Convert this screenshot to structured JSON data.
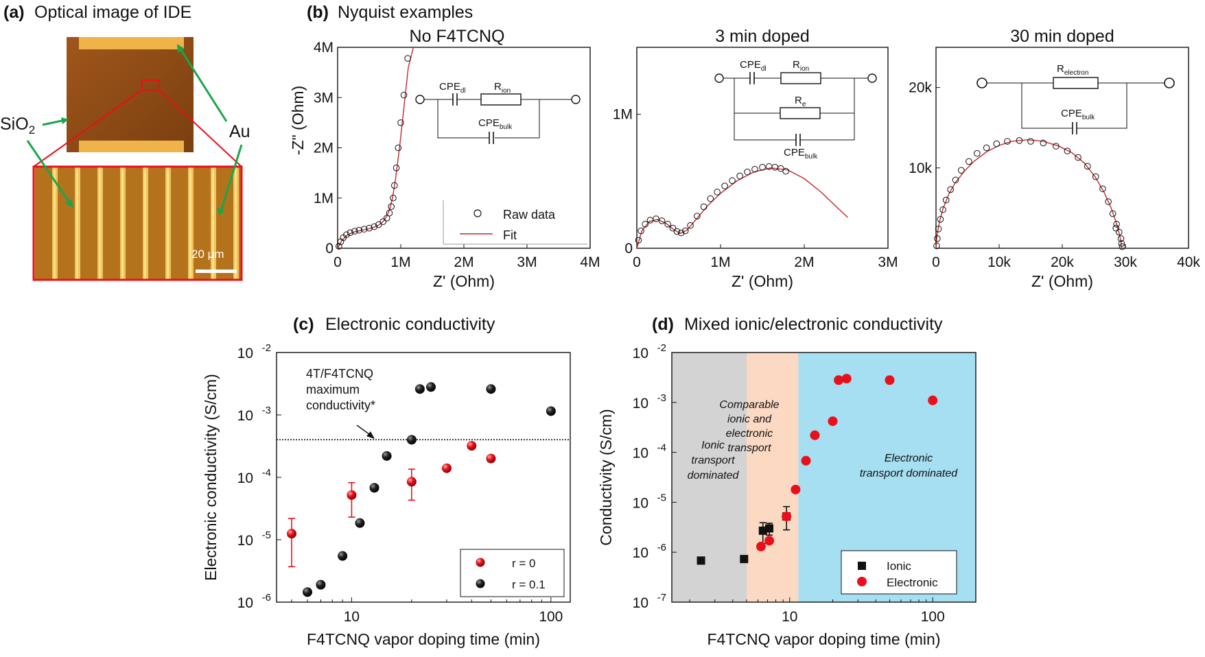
{
  "panels": {
    "a": {
      "tag": "(a)",
      "title": "Optical image of IDE",
      "label_sio2_main": "SiO",
      "label_sio2_sub": "2",
      "label_au": "Au",
      "scale_bar": "20 μm"
    },
    "b": {
      "tag": "(b)",
      "title": "Nyquist examples"
    },
    "c": {
      "tag": "(c)",
      "title": "Electronic conductivity"
    },
    "d": {
      "tag": "(d)",
      "title": "Mixed ionic/electronic conductivity"
    }
  },
  "colors": {
    "red": "#e8101a",
    "black": "#111111",
    "fit": "#c0282a",
    "gray_region": "#d3d3d3",
    "peach_region": "#fbd9c3",
    "blue_region": "#a6def2",
    "gold": "#e3a320",
    "brown": "#8a4d15"
  },
  "chart_data": [
    {
      "id": "b1",
      "type": "scatter",
      "title": "No F4TCNQ",
      "xlabel": "Z' (Ohm)",
      "ylabel": "-Z\" (Ohm)",
      "xlim": [
        0,
        4000000
      ],
      "ylim": [
        0,
        4000000
      ],
      "xticks": [
        {
          "v": 0,
          "t": "0"
        },
        {
          "v": 1000000,
          "t": "1M"
        },
        {
          "v": 2000000,
          "t": "2M"
        },
        {
          "v": 3000000,
          "t": "3M"
        },
        {
          "v": 4000000,
          "t": "4M"
        }
      ],
      "yticks": [
        {
          "v": 0,
          "t": "0"
        },
        {
          "v": 1000000,
          "t": "1M"
        },
        {
          "v": 2000000,
          "t": "2M"
        },
        {
          "v": 3000000,
          "t": "3M"
        },
        {
          "v": 4000000,
          "t": "4M"
        }
      ],
      "legend": [
        "Raw data",
        "Fit"
      ],
      "circuit": {
        "cpe_dl": "CPE",
        "cpe_dl_sub": "dl",
        "r_ion": "R",
        "r_ion_sub": "ion",
        "cpe_bulk": "CPE",
        "cpe_bulk_sub": "bulk"
      },
      "raw_x": [
        20000,
        50000,
        90000,
        140000,
        200000,
        270000,
        340000,
        420000,
        500000,
        580000,
        650000,
        720000,
        780000,
        820000,
        850000,
        880000,
        900000,
        930000,
        960000,
        1000000,
        1050000,
        1110000
      ],
      "raw_y": [
        40000,
        130000,
        210000,
        270000,
        310000,
        340000,
        360000,
        380000,
        400000,
        430000,
        470000,
        530000,
        600000,
        700000,
        830000,
        1000000,
        1250000,
        1600000,
        2000000,
        2500000,
        3050000,
        3780000
      ],
      "fit_x": [
        0,
        60000,
        150000,
        250000,
        350000,
        450000,
        550000,
        650000,
        720000,
        780000,
        830000,
        870000,
        920000,
        980000,
        1050000,
        1120000,
        1200000
      ],
      "fit_y": [
        0,
        140000,
        260000,
        320000,
        350000,
        375000,
        405000,
        460000,
        530000,
        640000,
        800000,
        1000000,
        1400000,
        2000000,
        2800000,
        3600000,
        4000000
      ]
    },
    {
      "id": "b2",
      "type": "scatter",
      "title": "3 min doped",
      "xlabel": "Z' (Ohm)",
      "ylabel": "",
      "xlim": [
        0,
        3000000
      ],
      "ylim": [
        0,
        1500000
      ],
      "xticks": [
        {
          "v": 0,
          "t": "0"
        },
        {
          "v": 1000000,
          "t": "1M"
        },
        {
          "v": 2000000,
          "t": "2M"
        },
        {
          "v": 3000000,
          "t": "3M"
        }
      ],
      "yticks": [
        {
          "v": 0,
          "t": "0"
        },
        {
          "v": 1000000,
          "t": "1M"
        }
      ],
      "circuit": {
        "cpe_dl": "CPE",
        "cpe_dl_sub": "dl",
        "r_ion": "R",
        "r_ion_sub": "ion",
        "r_e": "R",
        "r_e_sub": "e",
        "cpe_bulk": "CPE",
        "cpe_bulk_sub": "bulk"
      },
      "raw_x": [
        20000,
        50000,
        100000,
        160000,
        230000,
        300000,
        370000,
        430000,
        480000,
        530000,
        580000,
        640000,
        720000,
        800000,
        880000,
        960000,
        1050000,
        1140000,
        1230000,
        1320000,
        1410000,
        1500000,
        1580000,
        1650000,
        1720000,
        1780000
      ],
      "raw_y": [
        60000,
        130000,
        180000,
        210000,
        220000,
        205000,
        180000,
        150000,
        125000,
        115000,
        130000,
        170000,
        240000,
        310000,
        370000,
        420000,
        465000,
        505000,
        540000,
        570000,
        590000,
        605000,
        610000,
        605000,
        595000,
        575000
      ],
      "fit_x": [
        0,
        60000,
        150000,
        250000,
        350000,
        450000,
        520000,
        600000,
        700000,
        850000,
        1000000,
        1200000,
        1400000,
        1600000,
        1800000,
        2000000,
        2200000,
        2400000,
        2520000
      ],
      "fit_y": [
        0,
        130000,
        200000,
        215000,
        185000,
        135000,
        110000,
        135000,
        210000,
        320000,
        410000,
        505000,
        570000,
        600000,
        585000,
        520000,
        420000,
        300000,
        230000
      ]
    },
    {
      "id": "b3",
      "type": "scatter",
      "title": "30 min doped",
      "xlabel": "Z' (Ohm)",
      "ylabel": "",
      "xlim": [
        0,
        40000
      ],
      "ylim": [
        0,
        25000
      ],
      "xticks": [
        {
          "v": 0,
          "t": "0"
        },
        {
          "v": 10000,
          "t": "10k"
        },
        {
          "v": 20000,
          "t": "20k"
        },
        {
          "v": 30000,
          "t": "30k"
        },
        {
          "v": 40000,
          "t": "40k"
        }
      ],
      "yticks": [
        {
          "v": 10000,
          "t": "10k"
        },
        {
          "v": 20000,
          "t": "20k"
        }
      ],
      "circuit": {
        "r_electron": "R",
        "r_electron_sub": "electron",
        "cpe_bulk": "CPE",
        "cpe_bulk_sub": "bulk"
      },
      "raw_x": [
        100,
        200,
        400,
        700,
        1100,
        1600,
        2300,
        3100,
        4000,
        5200,
        6500,
        8000,
        9600,
        11300,
        13200,
        15000,
        17000,
        19000,
        20800,
        22500,
        24000,
        25300,
        26400,
        27300,
        28000,
        28600,
        29000,
        29300,
        29400,
        29500,
        28500
      ],
      "raw_y": [
        300,
        1200,
        2400,
        3600,
        4800,
        6000,
        7300,
        8500,
        9700,
        10800,
        11800,
        12500,
        13000,
        13300,
        13400,
        13300,
        13100,
        12700,
        12100,
        11300,
        10200,
        8900,
        7400,
        5800,
        4300,
        3000,
        2000,
        1200,
        600,
        200,
        2500
      ],
      "fit_x": [
        0,
        150,
        500,
        1100,
        2000,
        3000,
        4500,
        6000,
        8000,
        10000,
        12000,
        14500,
        17000,
        19500,
        21500,
        23500,
        25200,
        26600,
        27700,
        28500,
        29000,
        29300,
        29400
      ],
      "fit_y": [
        0,
        1500,
        3100,
        4900,
        6700,
        8100,
        9600,
        10800,
        12000,
        12800,
        13300,
        13500,
        13300,
        12700,
        11900,
        10600,
        8900,
        7000,
        5100,
        3300,
        1900,
        800,
        0
      ]
    },
    {
      "id": "c",
      "type": "scatter",
      "title": "Electronic conductivity",
      "xlabel": "F4TCNQ vapor doping time (min)",
      "ylabel": "Electronic conductivity (S/cm)",
      "xscale": "log",
      "yscale": "log",
      "xlim": [
        4.2,
        125
      ],
      "ylim": [
        1e-06,
        0.01
      ],
      "xticks": [
        {
          "v": 10,
          "t": "10"
        },
        {
          "v": 100,
          "t": "100"
        }
      ],
      "yticks": [
        {
          "v": 1e-06,
          "t": "10",
          "e": "-6"
        },
        {
          "v": 1e-05,
          "t": "10",
          "e": "-5"
        },
        {
          "v": 0.0001,
          "t": "10",
          "e": "-4"
        },
        {
          "v": 0.001,
          "t": "10",
          "e": "-3"
        },
        {
          "v": 0.01,
          "t": "10",
          "e": "-2"
        }
      ],
      "hline": 0.0004,
      "annotation": [
        "4T/F4TCNQ",
        "maximum",
        "conductivity*"
      ],
      "legend_placement": "bottom-right",
      "series": [
        {
          "name": "r = 0",
          "x": [
            5,
            10,
            20,
            30,
            40,
            50
          ],
          "y": [
            1.25e-05,
            5.2e-05,
            8.5e-05,
            0.00014,
            0.00032,
            0.0002
          ],
          "err_low": [
            3.7e-06,
            2.3e-05,
            4.3e-05,
            null,
            null,
            null
          ],
          "err_high": [
            2.2e-05,
            8.2e-05,
            0.000135,
            null,
            null,
            null
          ]
        },
        {
          "name": "r = 0.1",
          "x": [
            6,
            7,
            9,
            11,
            13,
            15,
            20,
            22,
            25,
            50,
            100
          ],
          "y": [
            1.45e-06,
            1.9e-06,
            5.5e-06,
            1.85e-05,
            6.8e-05,
            0.00022,
            0.0004,
            0.0026,
            0.0028,
            0.0026,
            0.00115
          ]
        }
      ]
    },
    {
      "id": "d",
      "type": "scatter",
      "title": "Mixed ionic/electronic conductivity",
      "xlabel": "F4TCNQ vapor doping time (min)",
      "ylabel": "Conductivity (S/cm)",
      "xscale": "log",
      "yscale": "log",
      "xlim": [
        1.5,
        200
      ],
      "ylim": [
        1e-07,
        0.01
      ],
      "xticks": [
        {
          "v": 10,
          "t": "10"
        },
        {
          "v": 100,
          "t": "100"
        }
      ],
      "yticks": [
        {
          "v": 1e-07,
          "t": "10",
          "e": "-7"
        },
        {
          "v": 1e-06,
          "t": "10",
          "e": "-6"
        },
        {
          "v": 1e-05,
          "t": "10",
          "e": "-5"
        },
        {
          "v": 0.0001,
          "t": "10",
          "e": "-4"
        },
        {
          "v": 0.001,
          "t": "10",
          "e": "-3"
        },
        {
          "v": 0.01,
          "t": "10",
          "e": "-2"
        }
      ],
      "regions": [
        {
          "from": 1.5,
          "to": 5,
          "color": "#d3d3d3",
          "label": [
            "Ionic",
            "transport",
            "dominated"
          ]
        },
        {
          "from": 5,
          "to": 11.5,
          "color": "#fbd9c3",
          "label": [
            "Comparable",
            "ionic and",
            "electronic",
            "transport"
          ]
        },
        {
          "from": 11.5,
          "to": 200,
          "color": "#a6def2",
          "label": [
            "Electronic",
            "transport dominated"
          ]
        }
      ],
      "legend_placement": "bottom-right",
      "series": [
        {
          "name": "Ionic",
          "marker": "square",
          "x": [
            2.4,
            4.8,
            6.5,
            7.2,
            9.5
          ],
          "y": [
            6.8e-07,
            7.3e-07,
            2.7e-06,
            3e-06,
            5.2e-06
          ],
          "err_low": [
            5.8e-07,
            6.5e-07,
            1.5e-06,
            2.2e-06,
            2.8e-06
          ],
          "err_high": [
            7.8e-07,
            8.1e-07,
            3.9e-06,
            3.8e-06,
            8.2e-06
          ]
        },
        {
          "name": "Electronic",
          "marker": "circle",
          "x": [
            6.3,
            7.2,
            9.5,
            11,
            13,
            15,
            20,
            22,
            25,
            50,
            100
          ],
          "y": [
            1.3e-06,
            1.7e-06,
            5.2e-06,
            1.8e-05,
            6.8e-05,
            0.00022,
            0.00042,
            0.0028,
            0.003,
            0.0028,
            0.0011
          ]
        }
      ]
    }
  ]
}
